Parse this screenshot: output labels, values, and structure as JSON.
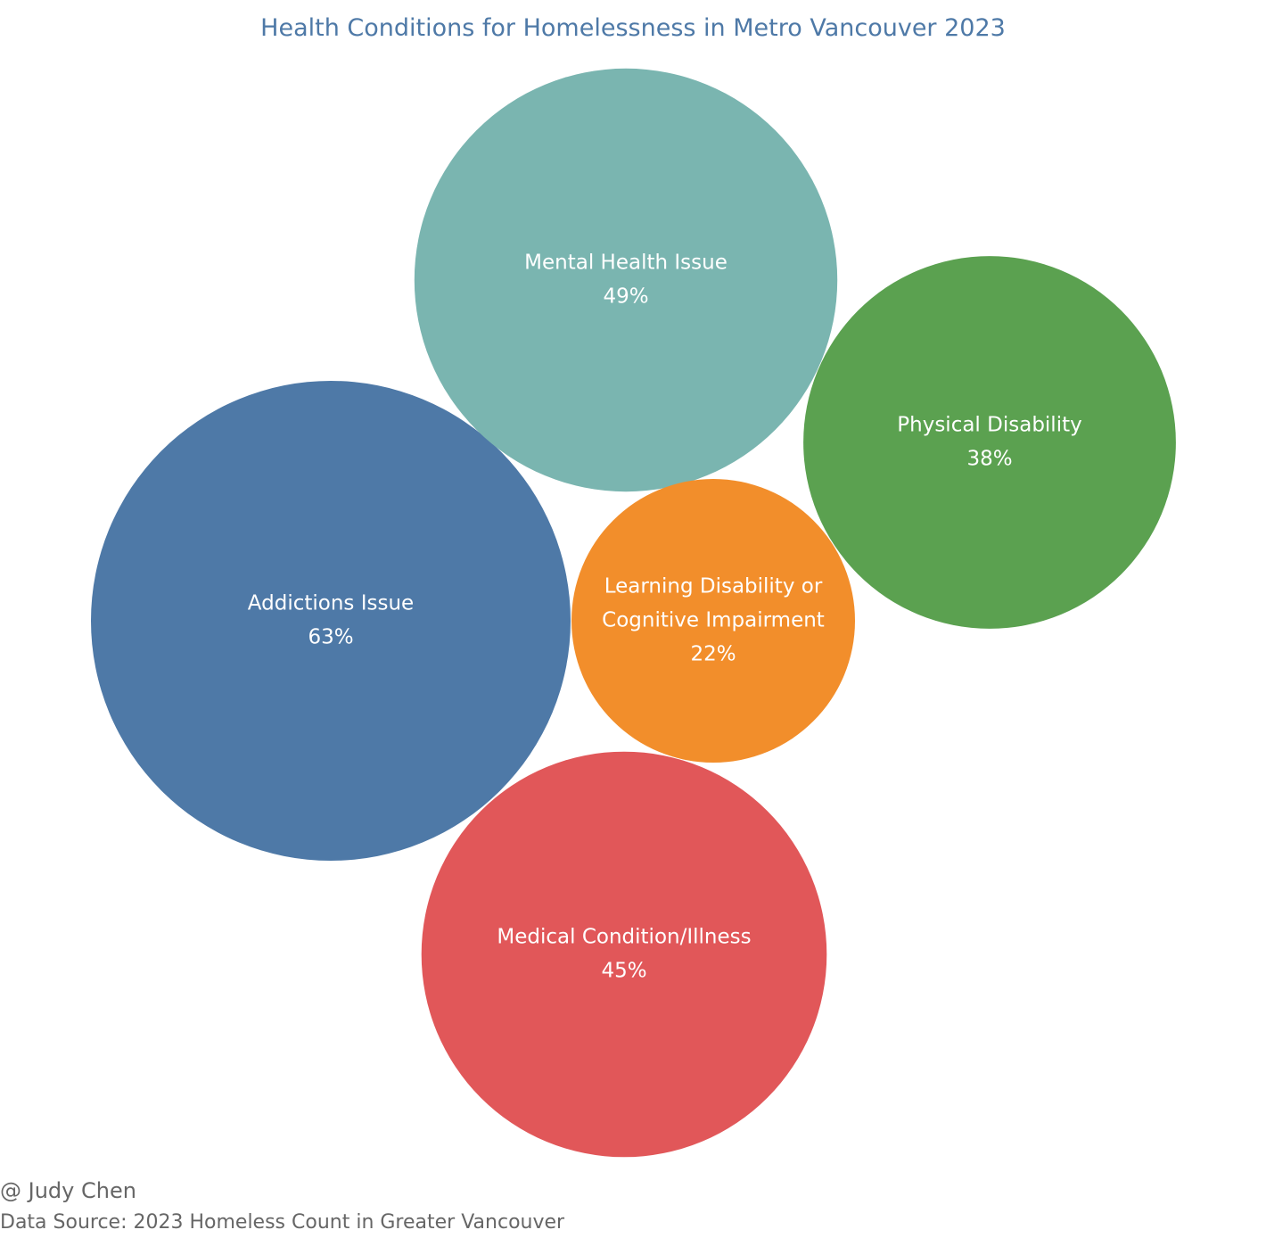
{
  "chart_data": {
    "type": "bubble",
    "title": "Health Conditions for Homelessness in Metro Vancouver 2023",
    "unit": "%",
    "bubbles": [
      {
        "label": "Addictions Issue",
        "value": 63,
        "value_label": "63%",
        "color": "#4e79a7"
      },
      {
        "label": "Mental Health Issue",
        "value": 49,
        "value_label": "49%",
        "color": "#7ab5b0"
      },
      {
        "label": "Medical Condition/Illness",
        "value": 45,
        "value_label": "45%",
        "color": "#e15759"
      },
      {
        "label": "Physical Disability",
        "value": 38,
        "value_label": "38%",
        "color": "#5ba150"
      },
      {
        "label": "Learning Disability or Cognitive Impairment",
        "label_lines": [
          "Learning Disability or",
          "Cognitive Impairment"
        ],
        "value": 22,
        "value_label": "22%",
        "color": "#f28e2b"
      }
    ]
  },
  "footer": {
    "credit": "@ Judy Chen",
    "source": "Data Source: 2023 Homeless Count in Greater Vancouver"
  }
}
